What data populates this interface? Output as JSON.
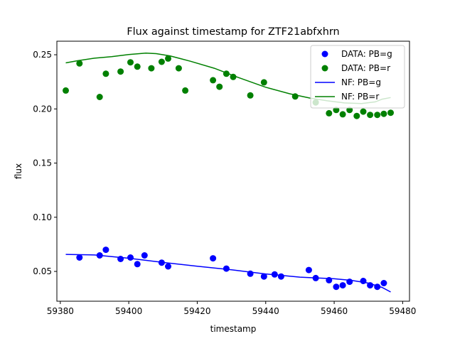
{
  "chart_data": {
    "type": "scatter",
    "title": "Flux against timestamp for ZTF21abfxhrn",
    "xlabel": "timestamp",
    "ylabel": "flux",
    "xlim": [
      59379,
      59482
    ],
    "ylim": [
      0.0225,
      0.2625
    ],
    "xticks": [
      59380,
      59400,
      59420,
      59440,
      59460,
      59480
    ],
    "yticks": [
      0.05,
      0.1,
      0.15,
      0.2,
      0.25
    ],
    "xtick_labels": [
      "59380",
      "59400",
      "59420",
      "59440",
      "59460",
      "59480"
    ],
    "ytick_labels": [
      "0.05",
      "0.10",
      "0.15",
      "0.20",
      "0.25"
    ],
    "legend_position": "top-right",
    "grid": false,
    "series": [
      {
        "name": "DATA: PB=g",
        "kind": "scatter",
        "color": "#0000ff",
        "points": [
          [
            59385.6,
            0.0628
          ],
          [
            59391.5,
            0.0648
          ],
          [
            59393.3,
            0.07
          ],
          [
            59397.6,
            0.0615
          ],
          [
            59400.5,
            0.0628
          ],
          [
            59402.5,
            0.0567
          ],
          [
            59404.6,
            0.0648
          ],
          [
            59409.6,
            0.0581
          ],
          [
            59411.5,
            0.0546
          ],
          [
            59424.6,
            0.0621
          ],
          [
            59428.5,
            0.0526
          ],
          [
            59435.5,
            0.0479
          ],
          [
            59439.5,
            0.0453
          ],
          [
            59442.6,
            0.0472
          ],
          [
            59444.5,
            0.0453
          ],
          [
            59452.6,
            0.0513
          ],
          [
            59454.6,
            0.0439
          ],
          [
            59458.5,
            0.0419
          ],
          [
            59460.6,
            0.0358
          ],
          [
            59462.5,
            0.0372
          ],
          [
            59464.5,
            0.0405
          ],
          [
            59468.5,
            0.0412
          ],
          [
            59470.5,
            0.0372
          ],
          [
            59472.6,
            0.0358
          ],
          [
            59474.5,
            0.0392
          ]
        ]
      },
      {
        "name": "DATA: PB=r",
        "kind": "scatter",
        "color": "#008000",
        "points": [
          [
            59381.6,
            0.217
          ],
          [
            59385.6,
            0.242
          ],
          [
            59391.5,
            0.211
          ],
          [
            59393.3,
            0.2325
          ],
          [
            59397.6,
            0.2345
          ],
          [
            59400.5,
            0.243
          ],
          [
            59402.5,
            0.239
          ],
          [
            59406.6,
            0.2375
          ],
          [
            59409.6,
            0.2435
          ],
          [
            59411.5,
            0.2465
          ],
          [
            59414.6,
            0.2375
          ],
          [
            59416.5,
            0.217
          ],
          [
            59424.6,
            0.2265
          ],
          [
            59426.5,
            0.2205
          ],
          [
            59428.5,
            0.2325
          ],
          [
            59430.5,
            0.2295
          ],
          [
            59435.5,
            0.2125
          ],
          [
            59439.5,
            0.2245
          ],
          [
            59448.6,
            0.2115
          ],
          [
            59454.6,
            0.206
          ],
          [
            59458.5,
            0.196
          ],
          [
            59460.6,
            0.199
          ],
          [
            59462.5,
            0.195
          ],
          [
            59464.5,
            0.199
          ],
          [
            59466.6,
            0.1935
          ],
          [
            59468.5,
            0.1975
          ],
          [
            59470.5,
            0.1945
          ],
          [
            59472.6,
            0.1945
          ],
          [
            59474.5,
            0.1955
          ],
          [
            59476.5,
            0.1965
          ]
        ]
      },
      {
        "name": "NF: PB=g",
        "kind": "line",
        "color": "#0000ff",
        "points": [
          [
            59381.6,
            0.0657
          ],
          [
            59390,
            0.0652
          ],
          [
            59400,
            0.0622
          ],
          [
            59410,
            0.0583
          ],
          [
            59420,
            0.0548
          ],
          [
            59430,
            0.0515
          ],
          [
            59440,
            0.0477
          ],
          [
            59450,
            0.0447
          ],
          [
            59455,
            0.044
          ],
          [
            59460,
            0.0432
          ],
          [
            59465,
            0.0418
          ],
          [
            59470,
            0.0392
          ],
          [
            59474,
            0.0352
          ],
          [
            59476.5,
            0.031
          ]
        ]
      },
      {
        "name": "NF: PB=r",
        "kind": "line",
        "color": "#008000",
        "points": [
          [
            59381.6,
            0.2425
          ],
          [
            59385,
            0.2445
          ],
          [
            59390,
            0.2468
          ],
          [
            59395,
            0.2482
          ],
          [
            59400,
            0.2502
          ],
          [
            59405,
            0.2515
          ],
          [
            59408,
            0.251
          ],
          [
            59412,
            0.249
          ],
          [
            59418,
            0.244
          ],
          [
            59425,
            0.2375
          ],
          [
            59432,
            0.229
          ],
          [
            59440,
            0.22
          ],
          [
            59447,
            0.214
          ],
          [
            59453,
            0.21
          ],
          [
            59458,
            0.2075
          ],
          [
            59463,
            0.2055
          ],
          [
            59468,
            0.205
          ],
          [
            59472,
            0.2065
          ],
          [
            59474,
            0.209
          ],
          [
            59476.5,
            0.2105
          ]
        ]
      }
    ]
  }
}
